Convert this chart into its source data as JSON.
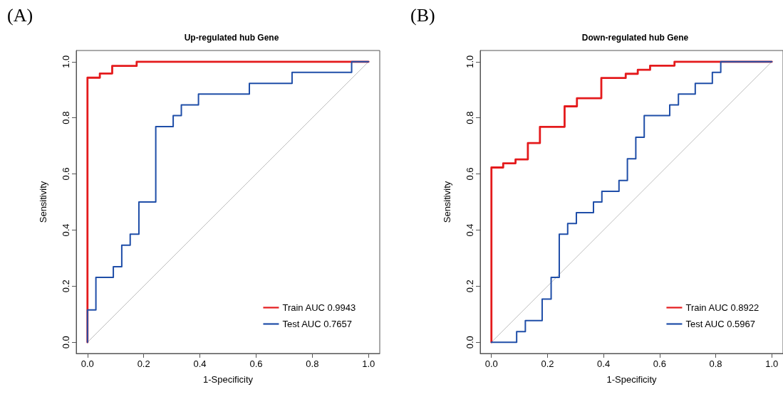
{
  "chart_data": [
    {
      "type": "line",
      "title": "Up-regulated hub Gene",
      "xlabel": "1-Specificity",
      "ylabel": "Sensitivity",
      "annotations": [
        "(A)"
      ],
      "xlim": [
        -0.04,
        1.04
      ],
      "ylim": [
        -0.04,
        1.04
      ],
      "xticks": [
        {
          "value": 0,
          "label": "0.0"
        },
        {
          "value": 0.2,
          "label": "0.2"
        },
        {
          "value": 0.4,
          "label": "0.4"
        },
        {
          "value": 0.6,
          "label": "0.6"
        },
        {
          "value": 0.8,
          "label": "0.8"
        },
        {
          "value": 1,
          "label": "1.0"
        }
      ],
      "yticks": [
        {
          "value": 0,
          "label": "0.0"
        },
        {
          "value": 0.2,
          "label": "0.2"
        },
        {
          "value": 0.4,
          "label": "0.4"
        },
        {
          "value": 0.6,
          "label": "0.6"
        },
        {
          "value": 0.8,
          "label": "0.8"
        },
        {
          "value": 1,
          "label": "1.0"
        }
      ],
      "grid": false,
      "legend": "bottom right",
      "marker": "none",
      "line_style": "solid",
      "series": [
        {
          "color": "#bebebe",
          "x": [
            0,
            1
          ],
          "values": [
            0,
            1
          ]
        },
        {
          "name": "Train AUC 0.9943",
          "color": "#e41a1c",
          "x": [
            0,
            0,
            0.044,
            0.044,
            0.088,
            0.088,
            0.175,
            0.175,
            1
          ],
          "values": [
            0,
            0.943,
            0.943,
            0.958,
            0.958,
            0.985,
            0.985,
            1,
            1
          ]
        },
        {
          "name": "Test AUC 0.7657",
          "color": "#1f4ea8",
          "x": [
            0,
            0,
            0.03,
            0.03,
            0.092,
            0.092,
            0.122,
            0.122,
            0.152,
            0.152,
            0.183,
            0.183,
            0.243,
            0.243,
            0.305,
            0.305,
            0.334,
            0.334,
            0.395,
            0.395,
            0.576,
            0.576,
            0.728,
            0.728,
            0.94,
            0.94,
            1
          ],
          "values": [
            0,
            0.115,
            0.115,
            0.231,
            0.231,
            0.269,
            0.269,
            0.346,
            0.346,
            0.385,
            0.385,
            0.5,
            0.5,
            0.769,
            0.769,
            0.808,
            0.808,
            0.846,
            0.846,
            0.885,
            0.885,
            0.923,
            0.923,
            0.962,
            0.962,
            1,
            1
          ]
        }
      ]
    },
    {
      "type": "line",
      "title": "Down-regulated hub Gene",
      "xlabel": "1-Specificity",
      "ylabel": "Sensitivity",
      "annotations": [
        "(B)"
      ],
      "xlim": [
        -0.04,
        1.04
      ],
      "ylim": [
        -0.04,
        1.04
      ],
      "xticks": [
        {
          "value": 0,
          "label": "0.0"
        },
        {
          "value": 0.2,
          "label": "0.2"
        },
        {
          "value": 0.4,
          "label": "0.4"
        },
        {
          "value": 0.6,
          "label": "0.6"
        },
        {
          "value": 0.8,
          "label": "0.8"
        },
        {
          "value": 1,
          "label": "1.0"
        }
      ],
      "yticks": [
        {
          "value": 0,
          "label": "0.0"
        },
        {
          "value": 0.2,
          "label": "0.2"
        },
        {
          "value": 0.4,
          "label": "0.4"
        },
        {
          "value": 0.6,
          "label": "0.6"
        },
        {
          "value": 0.8,
          "label": "0.8"
        },
        {
          "value": 1,
          "label": "1.0"
        }
      ],
      "grid": false,
      "legend": "bottom right",
      "marker": "none",
      "line_style": "solid",
      "series": [
        {
          "color": "#bebebe",
          "x": [
            0,
            1
          ],
          "values": [
            0,
            1
          ]
        },
        {
          "name": "Train AUC 0.8922",
          "color": "#e41a1c",
          "x": [
            0,
            0,
            0.042,
            0.042,
            0.086,
            0.086,
            0.13,
            0.13,
            0.173,
            0.173,
            0.261,
            0.261,
            0.305,
            0.305,
            0.392,
            0.392,
            0.479,
            0.479,
            0.522,
            0.522,
            0.566,
            0.566,
            0.653,
            0.653,
            1
          ],
          "values": [
            0,
            0.623,
            0.623,
            0.638,
            0.638,
            0.652,
            0.652,
            0.71,
            0.71,
            0.768,
            0.768,
            0.841,
            0.841,
            0.87,
            0.87,
            0.942,
            0.942,
            0.957,
            0.957,
            0.971,
            0.971,
            0.986,
            0.986,
            1,
            1
          ]
        },
        {
          "name": "Test AUC 0.5967",
          "color": "#1f4ea8",
          "x": [
            0,
            0.09,
            0.09,
            0.121,
            0.121,
            0.181,
            0.181,
            0.213,
            0.213,
            0.242,
            0.242,
            0.272,
            0.272,
            0.303,
            0.303,
            0.364,
            0.364,
            0.394,
            0.394,
            0.455,
            0.455,
            0.485,
            0.485,
            0.515,
            0.515,
            0.545,
            0.545,
            0.636,
            0.636,
            0.667,
            0.667,
            0.727,
            0.727,
            0.788,
            0.788,
            0.818,
            0.818,
            1
          ],
          "values": [
            0,
            0,
            0.038,
            0.038,
            0.077,
            0.077,
            0.154,
            0.154,
            0.231,
            0.231,
            0.385,
            0.385,
            0.423,
            0.423,
            0.462,
            0.462,
            0.5,
            0.5,
            0.538,
            0.538,
            0.577,
            0.577,
            0.654,
            0.654,
            0.731,
            0.731,
            0.808,
            0.808,
            0.846,
            0.846,
            0.885,
            0.885,
            0.923,
            0.923,
            0.962,
            0.962,
            1,
            1
          ]
        }
      ]
    }
  ]
}
